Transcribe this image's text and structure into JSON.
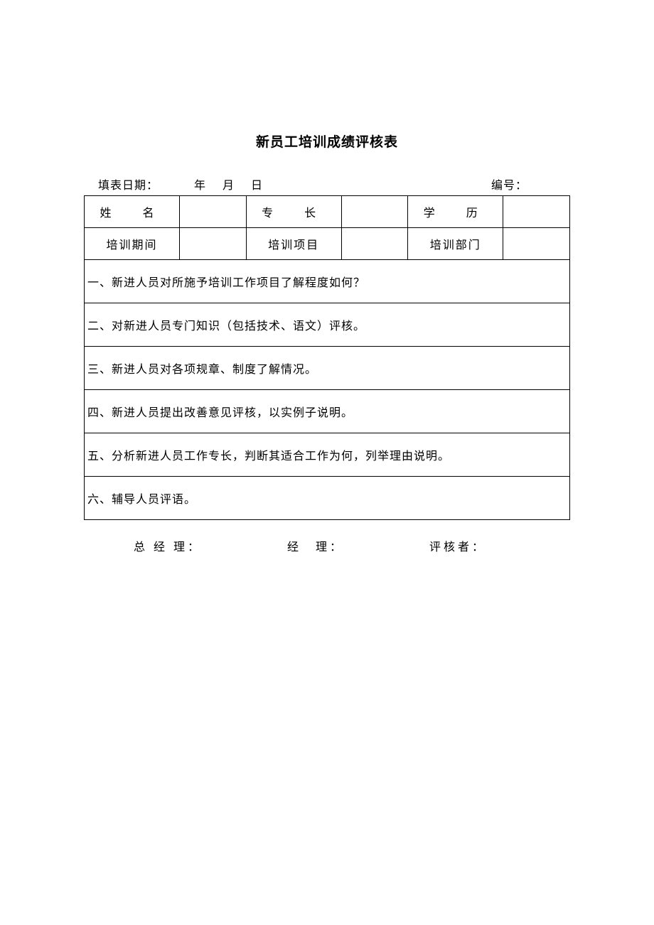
{
  "title": "新员工培训成绩评核表",
  "header": {
    "date_label": "填表日期：",
    "date_parts": "年月日",
    "number_label": "编号："
  },
  "info_rows": {
    "row1": {
      "label1": "姓　名",
      "label2": "专　长",
      "label3": "学　历"
    },
    "row2": {
      "label1": "培训期间",
      "label2": "培训项目",
      "label3": "培训部门"
    }
  },
  "questions": [
    "一、新进人员对所施予培训工作项目了解程度如何？",
    "二、对新进人员专门知识（包括技术、语文）评核。",
    "三、新进人员对各项规章、制度了解情况。",
    "四、新进人员提出改善意见评核，以实例子说明。",
    "五、分析新进人员工作专长，判断其适合工作为何，列举理由说明。",
    "六、辅导人员评语。"
  ],
  "footer": {
    "gm": "总 经 理：",
    "manager": "经　理：",
    "reviewer": "评核者："
  },
  "style": {
    "background_color": "#ffffff",
    "text_color": "#000000",
    "border_color": "#000000",
    "title_fontsize": 19,
    "body_fontsize": 16,
    "font_family": "SimSun"
  }
}
